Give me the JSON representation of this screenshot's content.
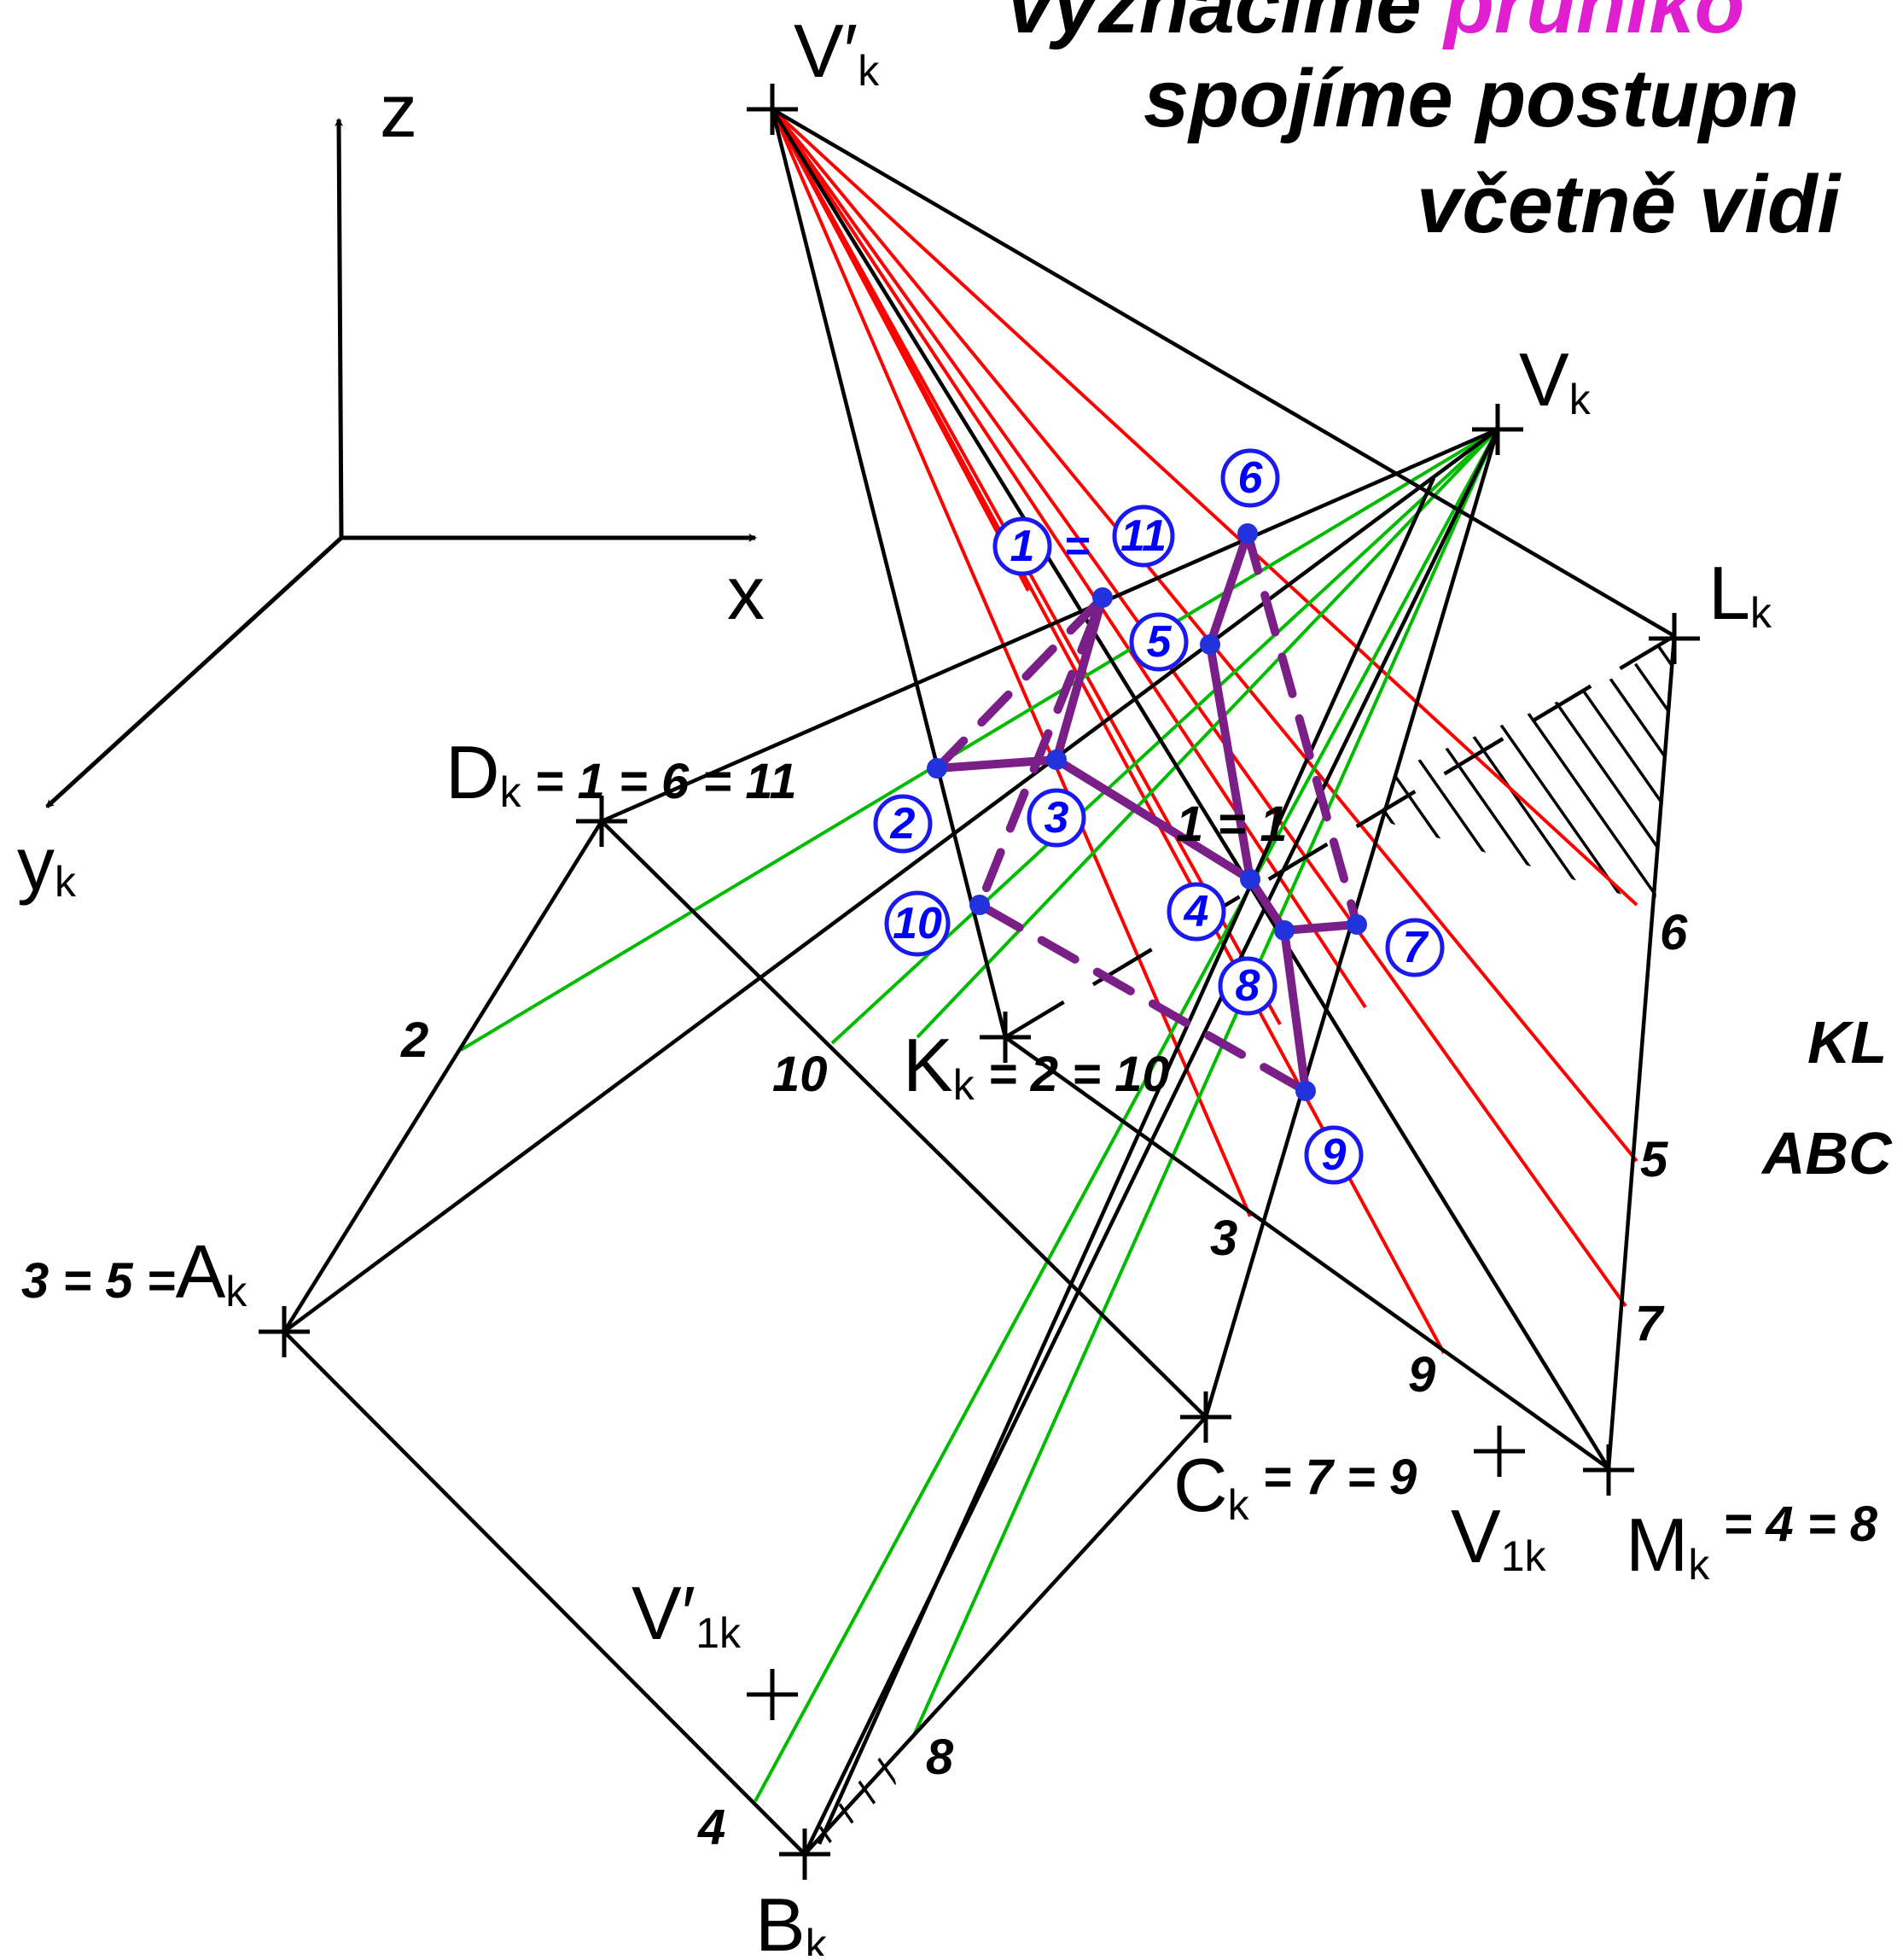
{
  "colors": {
    "edge": "#000000",
    "red_ray": "#ff0000",
    "green_ray": "#00bb00",
    "intersection": "#7a1f87",
    "marker": "#1a1aee",
    "highlight": "#e020d0"
  },
  "title": {
    "line1_prefix": "vyznačíme ",
    "line1_highlight": "průniko",
    "line2": "spojíme postupn",
    "line3": "včetně vidi"
  },
  "axes": {
    "z": "z",
    "x": "x",
    "y": "y",
    "y_sub": "k"
  },
  "points": {
    "Vprime": {
      "main": "V",
      "prime": "′",
      "sub": "k"
    },
    "V": {
      "main": "V",
      "sub": "k"
    },
    "L": {
      "main": "L",
      "sub": "k"
    },
    "D": {
      "main": "D",
      "sub": "k",
      "suffix": " = 1 = 6 = 11"
    },
    "K": {
      "main": "K",
      "sub": "k",
      "suffix": " = 2 = 10"
    },
    "A": {
      "main": "A",
      "sub": "k",
      "prefix": "3 = 5 ="
    },
    "C": {
      "main": "C",
      "sub": "k",
      "suffix": " = 7 = 9"
    },
    "M": {
      "main": "M",
      "sub": "k",
      "suffix": " = 4 = 8"
    },
    "B": {
      "main": "B",
      "sub": "k"
    },
    "V1": {
      "main": "V",
      "sub": "1k"
    },
    "Vprime1": {
      "main": "V",
      "prime": "′",
      "sub": "1k"
    }
  },
  "edge_numbers": [
    "2",
    "10",
    "3",
    "9",
    "4",
    "8",
    "6",
    "5",
    "7",
    "1 = 1"
  ],
  "markers": [
    "1",
    "11",
    "6",
    "5",
    "2",
    "3",
    "10",
    "4",
    "8",
    "7",
    "9"
  ],
  "marker_equals": "=",
  "side_text": [
    "KL",
    "ABC"
  ]
}
